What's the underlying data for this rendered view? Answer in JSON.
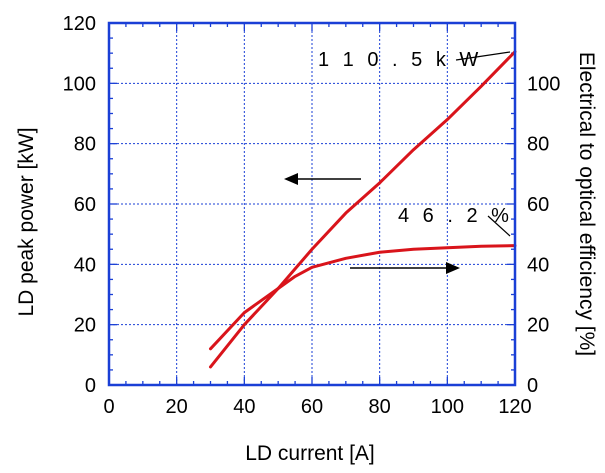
{
  "chart_data": {
    "type": "line",
    "xlabel": "LD current [A]",
    "ylabel_left": "LD peak power [kW]",
    "ylabel_right": "Electrical to optical efficiency [%]",
    "xlim": [
      0,
      120
    ],
    "ylim_left": [
      0,
      120
    ],
    "ylim_right": [
      0,
      120
    ],
    "x_ticks": [
      "0",
      "20",
      "40",
      "60",
      "80",
      "100",
      "120"
    ],
    "y_left_ticks": [
      "0",
      "20",
      "40",
      "60",
      "80",
      "100",
      "120"
    ],
    "y_right_ticks": [
      "0",
      "20",
      "40",
      "60",
      "80",
      "100"
    ],
    "grid": true,
    "series": [
      {
        "axis": "left",
        "color": "#d9141b",
        "x": [
          30,
          40,
          50,
          60,
          70,
          80,
          90,
          100,
          110,
          120
        ],
        "y": [
          6,
          20,
          32,
          45,
          57,
          67,
          78,
          88,
          99,
          110.5
        ]
      },
      {
        "axis": "right",
        "color": "#d9141b",
        "x": [
          30,
          40,
          50,
          55,
          60,
          70,
          80,
          90,
          100,
          110,
          120
        ],
        "y": [
          12,
          24,
          32,
          36,
          39,
          42,
          44,
          45,
          45.5,
          46,
          46.2
        ]
      }
    ],
    "annotations": [
      {
        "text": "1 1 0 . 5 k W"
      },
      {
        "text": "4 6 . 2 %"
      }
    ],
    "arrows": [
      {
        "direction": "left",
        "points_to": "left axis"
      },
      {
        "direction": "right",
        "points_to": "right axis"
      }
    ]
  }
}
